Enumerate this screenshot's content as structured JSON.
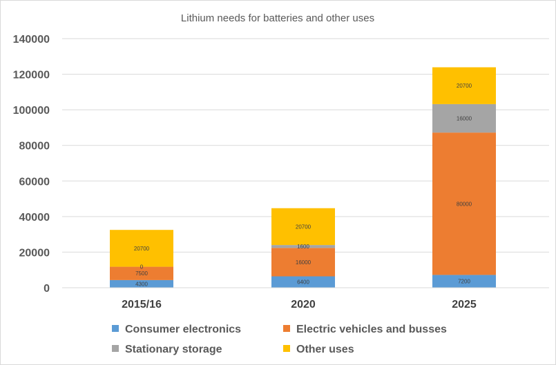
{
  "chart_data": {
    "type": "bar",
    "stacked": true,
    "title": "Lithium needs for batteries and other uses",
    "xlabel": "",
    "ylabel": "",
    "categories": [
      "2015/16",
      "2020",
      "2025"
    ],
    "ylim": [
      0,
      140000
    ],
    "yticks": [
      "0",
      "20000",
      "40000",
      "60000",
      "80000",
      "100000",
      "120000",
      "140000"
    ],
    "grid": true,
    "legend_position": "bottom",
    "series": [
      {
        "name": "Consumer electronics",
        "color": "#5b9bd5",
        "values": [
          4300,
          6400,
          7200
        ],
        "labels": [
          "4300",
          "6400",
          "7200"
        ]
      },
      {
        "name": "Electric vehicles and busses",
        "color": "#ed7d31",
        "values": [
          7500,
          16000,
          80000
        ],
        "labels": [
          "7500",
          "16000",
          "80000"
        ]
      },
      {
        "name": "Stationary storage",
        "color": "#a5a5a5",
        "values": [
          0,
          1600,
          16000
        ],
        "labels": [
          "0",
          "1600",
          "16000"
        ]
      },
      {
        "name": "Other uses",
        "color": "#ffc000",
        "values": [
          20700,
          20700,
          20700
        ],
        "labels": [
          "20700",
          "20700",
          "20700"
        ]
      }
    ]
  }
}
